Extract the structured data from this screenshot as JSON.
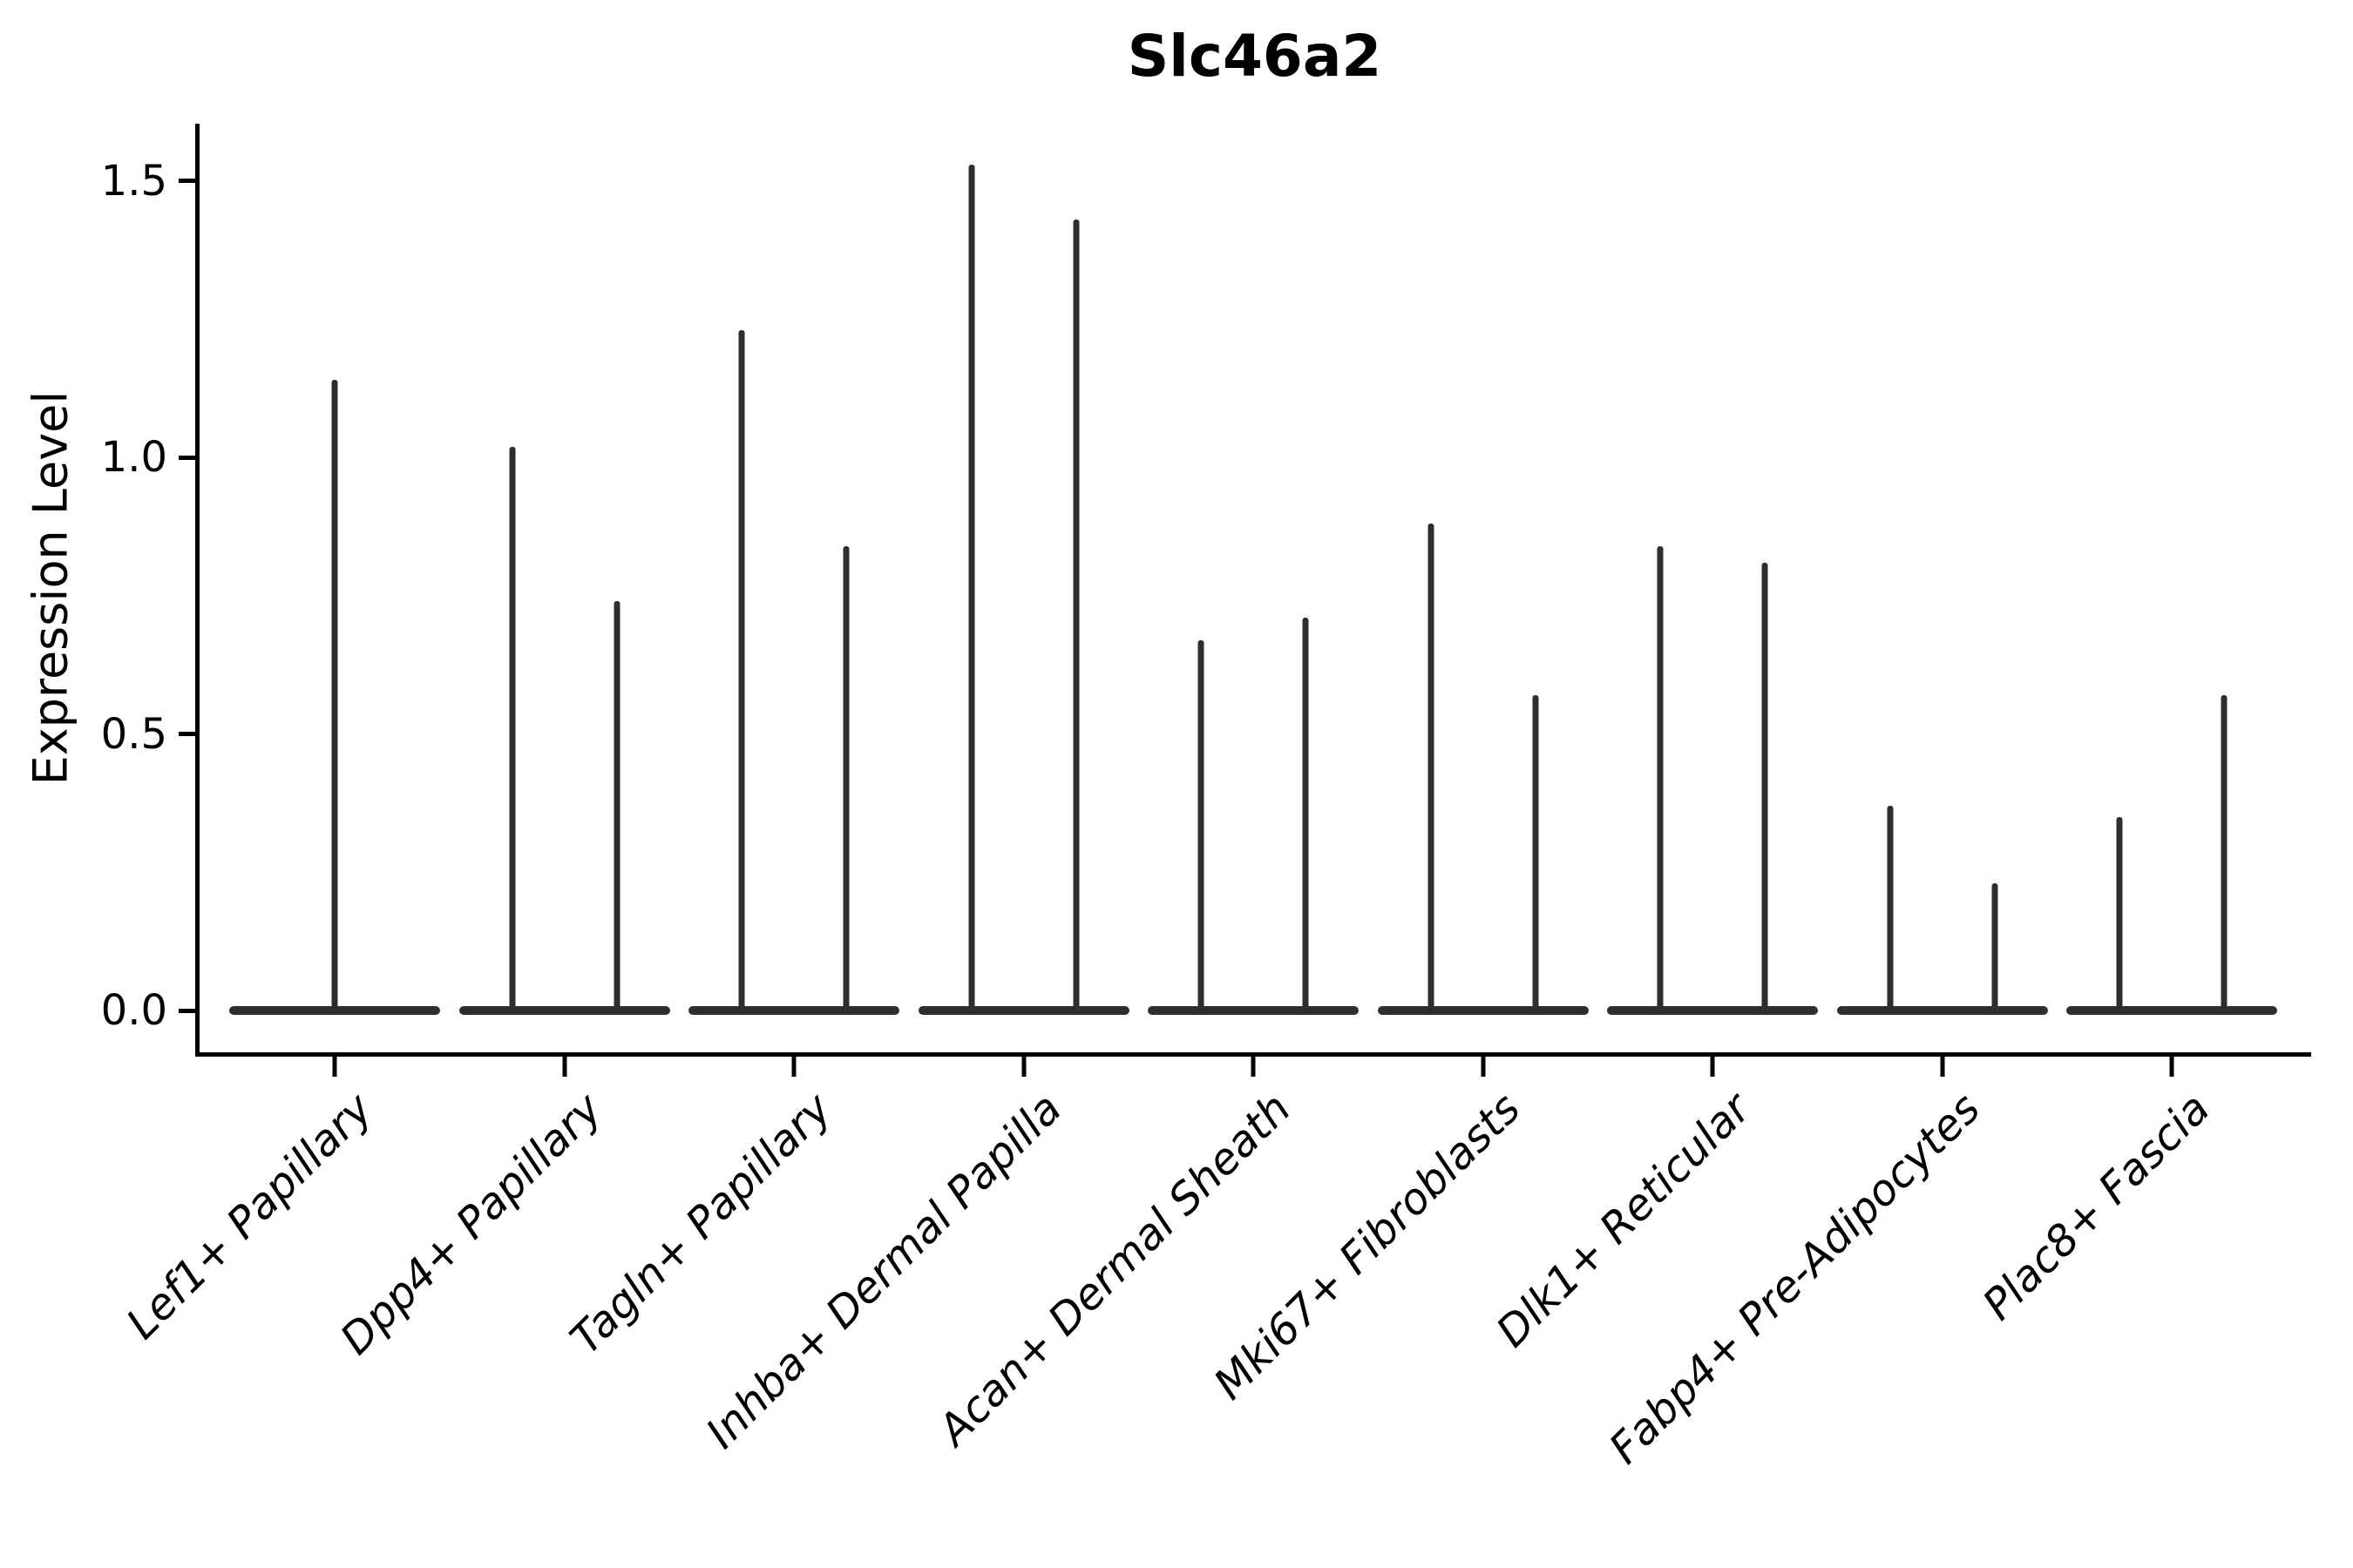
{
  "title": "Slc46a2",
  "ylabel": "Expression Level",
  "chart_data": {
    "type": "violin",
    "title": "Slc46a2",
    "xlabel": "",
    "ylabel": "Expression Level",
    "ylim": [
      -0.08,
      1.6
    ],
    "yticks": [
      "0.0",
      "0.5",
      "1.0",
      "1.5"
    ],
    "ytick_values": [
      0.0,
      0.5,
      1.0,
      1.5
    ],
    "grid": false,
    "legend": "none",
    "note": "Sparse single-cell expression violins: each violin collapses to a flat bar at 0 with a thin vertical tail up to the max expression value.",
    "categories": [
      "Lef1+ Papillary",
      "Dpp4+ Papillary",
      "Tagln+ Papillary",
      "Inhba+ Dermal Papilla",
      "Acan+ Dermal Sheath",
      "Mki67+ Fibroblasts",
      "Dlk1+ Reticular",
      "Fabp4+ Pre-Adipocytes",
      "Plac8+ Fascia"
    ],
    "violins": [
      {
        "category": "Lef1+ Papillary",
        "spikes": [
          {
            "pos": 0,
            "max": 1.14
          }
        ]
      },
      {
        "category": "Dpp4+ Papillary",
        "spikes": [
          {
            "pos": -1,
            "max": 1.02
          },
          {
            "pos": 1,
            "max": 0.74
          }
        ]
      },
      {
        "category": "Tagln+ Papillary",
        "spikes": [
          {
            "pos": -1,
            "max": 1.23
          },
          {
            "pos": 1,
            "max": 0.84
          }
        ]
      },
      {
        "category": "Inhba+ Dermal Papilla",
        "spikes": [
          {
            "pos": -1,
            "max": 1.53
          },
          {
            "pos": 1,
            "max": 1.43
          }
        ]
      },
      {
        "category": "Acan+ Dermal Sheath",
        "spikes": [
          {
            "pos": -1,
            "max": 0.67
          },
          {
            "pos": 1,
            "max": 0.71
          }
        ]
      },
      {
        "category": "Mki67+ Fibroblasts",
        "spikes": [
          {
            "pos": -1,
            "max": 0.88
          },
          {
            "pos": 1,
            "max": 0.57
          }
        ]
      },
      {
        "category": "Dlk1+ Reticular",
        "spikes": [
          {
            "pos": -1,
            "max": 0.84
          },
          {
            "pos": 1,
            "max": 0.81
          }
        ]
      },
      {
        "category": "Fabp4+ Pre-Adipocytes",
        "spikes": [
          {
            "pos": -1,
            "max": 0.37
          },
          {
            "pos": 1,
            "max": 0.23
          }
        ]
      },
      {
        "category": "Plac8+ Fascia",
        "spikes": [
          {
            "pos": -1,
            "max": 0.35
          },
          {
            "pos": 1,
            "max": 0.57
          }
        ]
      }
    ],
    "colors": {
      "violin": "#2e2e2e",
      "axis": "#000000",
      "text": "#000000",
      "background": "#ffffff"
    }
  }
}
